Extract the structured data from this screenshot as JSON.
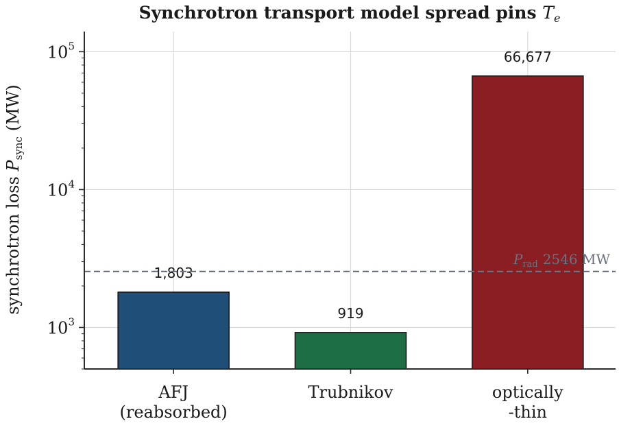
{
  "chart_data": {
    "type": "bar",
    "title": "Synchrotron transport model spread pins T_e",
    "title_parts": {
      "text": "Synchrotron transport model spread pins ",
      "symbol": "T",
      "symbol_sub": "e"
    },
    "ylabel": "synchrotron loss P_sync (MW)",
    "ylabel_parts": {
      "text": "synchrotron loss ",
      "symbol": "P",
      "symbol_sub": "sync",
      "unit": "(MW)"
    },
    "yscale": "log",
    "ylim": [
      500,
      140000
    ],
    "yticks": [
      {
        "value": 1000,
        "base": "10",
        "exp": "3"
      },
      {
        "value": 10000,
        "base": "10",
        "exp": "4"
      },
      {
        "value": 100000,
        "base": "10",
        "exp": "5"
      }
    ],
    "categories": [
      {
        "lines": [
          "AFJ",
          "(reabsorbed)"
        ]
      },
      {
        "lines": [
          "Trubnikov"
        ]
      },
      {
        "lines": [
          "optically",
          "-thin"
        ]
      }
    ],
    "values": [
      1803,
      919,
      66677
    ],
    "value_labels": [
      "1,803",
      "919",
      "66,677"
    ],
    "colors": [
      "#1f4e79",
      "#1e6e45",
      "#8b1e22"
    ],
    "reference_line": {
      "value": 2546,
      "label": {
        "symbol": "P",
        "symbol_sub": "rad",
        "text": "2546 MW"
      },
      "color": "#6b7280",
      "style": "dashed"
    },
    "grid": true,
    "legend": "none"
  }
}
